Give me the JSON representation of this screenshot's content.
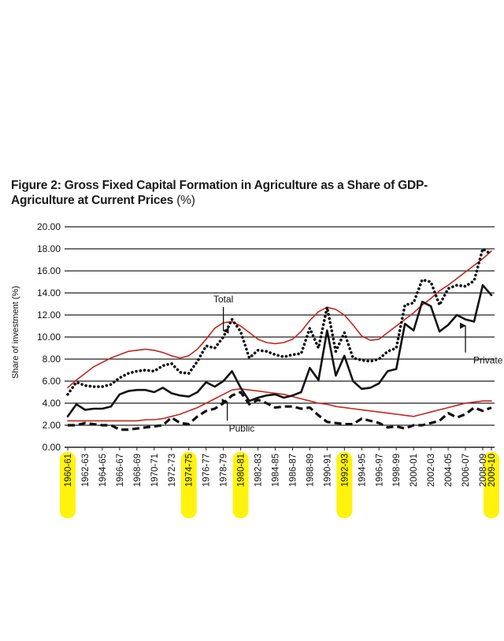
{
  "title": "Figure 2: Gross Fixed Capital Formation in Agriculture as a Share of GDP-Agriculture at Current Prices",
  "title_unit": "(%)",
  "chart_data": {
    "type": "line",
    "ylabel": "Share of investment (%)",
    "xlabel": "",
    "ylim": [
      0,
      20
    ],
    "yticks": [
      "0.00",
      "2.00",
      "4.00",
      "6.00",
      "8.00",
      "10.00",
      "12.00",
      "14.00",
      "16.00",
      "18.00",
      "20.00"
    ],
    "grid": "horizontal",
    "x_labels": [
      "1960-61",
      "1962-63",
      "1964-65",
      "1966-67",
      "1968-69",
      "1970-71",
      "1972-73",
      "1974-75",
      "1976-77",
      "1978-79",
      "1980-81",
      "1982-83",
      "1984-85",
      "1986-87",
      "1988-89",
      "1990-91",
      "1992-93",
      "1994-95",
      "1996-97",
      "1998-99",
      "2000-01",
      "2002-03",
      "2004-05",
      "2006-07",
      "2008-09",
      "2009-10"
    ],
    "highlighted_labels": [
      "1960-61",
      "1974-75",
      "1980-81",
      "1992-93",
      "2009-10"
    ],
    "highlight_color": "#fff200",
    "x": [
      "1960-61",
      "1961-62",
      "1962-63",
      "1963-64",
      "1964-65",
      "1965-66",
      "1966-67",
      "1967-68",
      "1968-69",
      "1969-70",
      "1970-71",
      "1971-72",
      "1972-73",
      "1973-74",
      "1974-75",
      "1975-76",
      "1976-77",
      "1977-78",
      "1978-79",
      "1979-80",
      "1980-81",
      "1981-82",
      "1982-83",
      "1983-84",
      "1984-85",
      "1985-86",
      "1986-87",
      "1987-88",
      "1988-89",
      "1989-90",
      "1990-91",
      "1991-92",
      "1992-93",
      "1993-94",
      "1994-95",
      "1995-96",
      "1996-97",
      "1997-98",
      "1998-99",
      "1999-00",
      "2000-01",
      "2001-02",
      "2002-03",
      "2003-04",
      "2004-05",
      "2005-06",
      "2006-07",
      "2007-08",
      "2008-09",
      "2009-10"
    ],
    "series": [
      {
        "name": "Total",
        "style": "dotted",
        "color": "#111111",
        "values": [
          4.8,
          5.9,
          5.6,
          5.5,
          5.5,
          5.7,
          6.3,
          6.7,
          6.9,
          7.0,
          6.9,
          7.4,
          7.6,
          6.8,
          6.7,
          7.8,
          9.2,
          9.0,
          10.0,
          11.6,
          10.5,
          8.1,
          8.8,
          8.7,
          8.4,
          8.2,
          8.4,
          8.5,
          10.8,
          9.0,
          12.7,
          8.7,
          10.4,
          8.1,
          7.9,
          7.8,
          8.0,
          8.7,
          9.0,
          12.9,
          13.1,
          15.2,
          15.0,
          12.9,
          14.4,
          14.7,
          14.6,
          15.1,
          18.0,
          17.5
        ]
      },
      {
        "name": "Private",
        "style": "solid",
        "color": "#111111",
        "values": [
          2.8,
          3.9,
          3.4,
          3.5,
          3.5,
          3.7,
          4.8,
          5.1,
          5.2,
          5.2,
          5.0,
          5.4,
          4.9,
          4.7,
          4.6,
          5.0,
          5.9,
          5.5,
          6.0,
          6.9,
          5.4,
          4.2,
          4.5,
          4.7,
          4.8,
          4.5,
          4.7,
          5.0,
          7.2,
          6.1,
          10.6,
          6.5,
          8.3,
          6.0,
          5.3,
          5.4,
          5.8,
          6.9,
          7.1,
          11.2,
          10.6,
          13.2,
          12.8,
          10.5,
          11.1,
          12.0,
          11.6,
          11.4,
          14.7,
          13.8
        ]
      },
      {
        "name": "Public",
        "style": "dashed",
        "color": "#111111",
        "values": [
          2.0,
          2.0,
          2.2,
          2.1,
          2.0,
          2.0,
          1.6,
          1.6,
          1.7,
          1.8,
          1.9,
          2.0,
          2.7,
          2.2,
          2.1,
          2.8,
          3.3,
          3.5,
          4.0,
          4.7,
          5.0,
          3.9,
          4.3,
          4.0,
          3.6,
          3.7,
          3.7,
          3.5,
          3.6,
          2.9,
          2.3,
          2.2,
          2.1,
          2.1,
          2.6,
          2.4,
          2.2,
          1.8,
          1.9,
          1.7,
          2.0,
          2.0,
          2.2,
          2.4,
          3.1,
          2.7,
          3.0,
          3.6,
          3.3,
          3.6
        ]
      },
      {
        "name": "",
        "style": "trend",
        "color": "#c0281e",
        "values": [
          5.4,
          6.1,
          6.7,
          7.3,
          7.7,
          8.1,
          8.4,
          8.7,
          8.8,
          8.9,
          8.8,
          8.6,
          8.3,
          8.1,
          8.3,
          8.9,
          9.8,
          10.8,
          11.3,
          11.4,
          11.0,
          10.4,
          9.8,
          9.5,
          9.4,
          9.5,
          9.8,
          10.5,
          11.5,
          12.3,
          12.7,
          12.5,
          12.0,
          11.1,
          10.1,
          9.7,
          9.8,
          10.4,
          11.0,
          11.6,
          12.2,
          12.9,
          13.5,
          14.2,
          14.7,
          15.3,
          15.9,
          16.5,
          17.1,
          17.8
        ]
      },
      {
        "name": "",
        "style": "trend",
        "color": "#c0281e",
        "values": [
          2.4,
          2.4,
          2.4,
          2.4,
          2.4,
          2.4,
          2.4,
          2.4,
          2.4,
          2.5,
          2.5,
          2.6,
          2.8,
          3.0,
          3.3,
          3.6,
          4.0,
          4.4,
          4.8,
          5.2,
          5.3,
          5.2,
          5.1,
          5.0,
          4.9,
          4.8,
          4.6,
          4.4,
          4.2,
          4.0,
          3.9,
          3.7,
          3.6,
          3.5,
          3.4,
          3.3,
          3.2,
          3.1,
          3.0,
          2.9,
          2.8,
          3.0,
          3.2,
          3.4,
          3.6,
          3.8,
          4.0,
          4.1,
          4.2,
          4.2
        ]
      }
    ],
    "annotations": [
      {
        "text": "Total",
        "series": "Total",
        "point": "1978-79",
        "arrow": "down"
      },
      {
        "text": "Private",
        "series": "Private",
        "point": "2006-07",
        "arrow": "up"
      },
      {
        "text": "Public",
        "series": "Public",
        "point": "1979-80",
        "arrow": "up"
      }
    ]
  }
}
